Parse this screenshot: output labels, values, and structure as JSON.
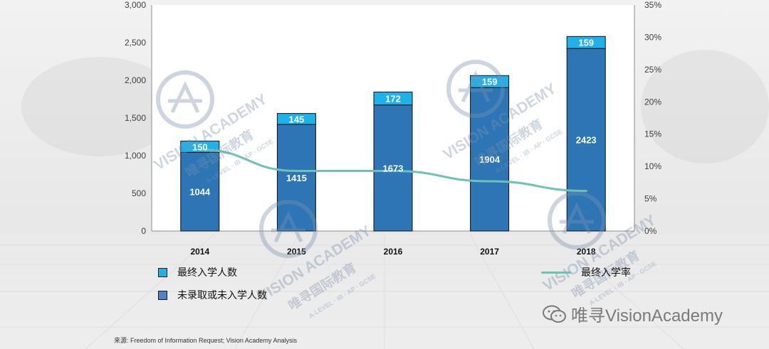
{
  "chart_data": {
    "type": "bar",
    "categories": [
      "2014",
      "2015",
      "2016",
      "2017",
      "2018"
    ],
    "series": [
      {
        "name": "未录取或未入学人数",
        "kind": "bar-bottom",
        "values": [
          1044,
          1415,
          1673,
          1904,
          2423
        ],
        "color": "#2e75b6"
      },
      {
        "name": "最终入学人数",
        "kind": "bar-top",
        "values": [
          150,
          145,
          172,
          159,
          159
        ],
        "color": "#1fb2ea"
      },
      {
        "name": "最终入学率",
        "kind": "line",
        "axis": "right",
        "values": [
          12.6,
          9.3,
          9.3,
          7.7,
          6.2
        ],
        "color": "#6cc3b4"
      }
    ],
    "left_axis": {
      "min": 0,
      "max": 3000,
      "ticks": [
        "0",
        "500",
        "1,000",
        "1,500",
        "2,000",
        "2,500",
        "3,000"
      ]
    },
    "right_axis": {
      "min": 0,
      "max": 35,
      "ticks": [
        "0%",
        "5%",
        "10%",
        "15%",
        "20%",
        "25%",
        "30%",
        "35%"
      ]
    },
    "grid": false,
    "legend": "bottom"
  },
  "legend": {
    "final_enrolled": "最终入学人数",
    "not_admitted": "未录取或未入学人数",
    "rate": "最终入学率"
  },
  "source_text": "来源:   Freedom of Information Request; Vision Academy Analysis",
  "brand_text": "唯寻VisionAcademy",
  "watermark": {
    "en": "VISION ACADEMY",
    "cn": "唯寻国际教育",
    "sub": "A-LEVEL · IB · AP · GCSE"
  }
}
